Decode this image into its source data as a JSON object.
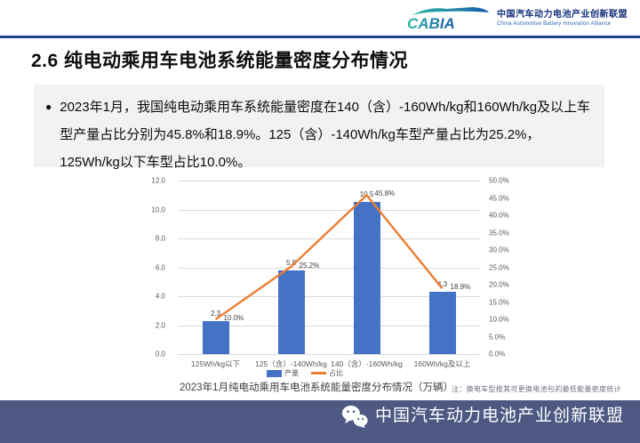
{
  "header": {
    "logo": "CABIA",
    "org_name_cn": "中国汽车动力电池产业创新联盟",
    "org_name_en": "China Automotive Battery Innovation Alliance"
  },
  "slide": {
    "section_title": "2.6 纯电动乘用车电池系统能量密度分布情况",
    "bullet": "●",
    "summary": "2023年1月，我国纯电动乘用车系统能量密度在140（含）-160Wh/kg和160Wh/kg及以上车型产量占比分别为45.8%和18.9%。125（含）-140Wh/kg车型产量占比为25.2%，125Wh/kg以下车型占比10.0%。"
  },
  "chart_data": {
    "type": "bar",
    "subtype": "combo-bar-line-dual-axis",
    "title": "2023年1月纯电动乘用车电池系统能量密度分布情况（万辆）",
    "note": "注：换电车型按其可更换电池包的最低能量密度统计",
    "categories": [
      "125Wh/kg以下",
      "125（含）-140Wh/kg",
      "140（含）-160Wh/kg",
      "160Wh/kg及以上"
    ],
    "series": [
      {
        "name": "产量",
        "type": "bar",
        "axis": "left",
        "color": "#4472c4",
        "values": [
          2.3,
          5.8,
          10.5,
          4.3
        ],
        "labels": [
          "2.3",
          "5.8",
          "10.5",
          "4.3"
        ]
      },
      {
        "name": "占比",
        "type": "line",
        "axis": "right",
        "color": "#ed7d31",
        "values": [
          10.0,
          25.2,
          45.8,
          18.9
        ],
        "labels": [
          "10.0%",
          "25.2%",
          "45.8%",
          "18.9%"
        ]
      }
    ],
    "left_axis": {
      "min": 0,
      "max": 12,
      "ticks": [
        "12.0",
        "10.0",
        "8.0",
        "6.0",
        "4.0",
        "2.0",
        "0.0"
      ]
    },
    "right_axis": {
      "min": 0,
      "max": 50,
      "ticks": [
        "50.0%",
        "45.0%",
        "40.0%",
        "35.0%",
        "30.0%",
        "25.0%",
        "20.0%",
        "15.0%",
        "10.0%",
        "5.0%",
        "0.0%"
      ]
    },
    "grid": true,
    "legend_position": "bottom"
  },
  "footer": {
    "org_name": "中国汽车动力电池产业创新联盟",
    "icon": "wechat-icon"
  }
}
